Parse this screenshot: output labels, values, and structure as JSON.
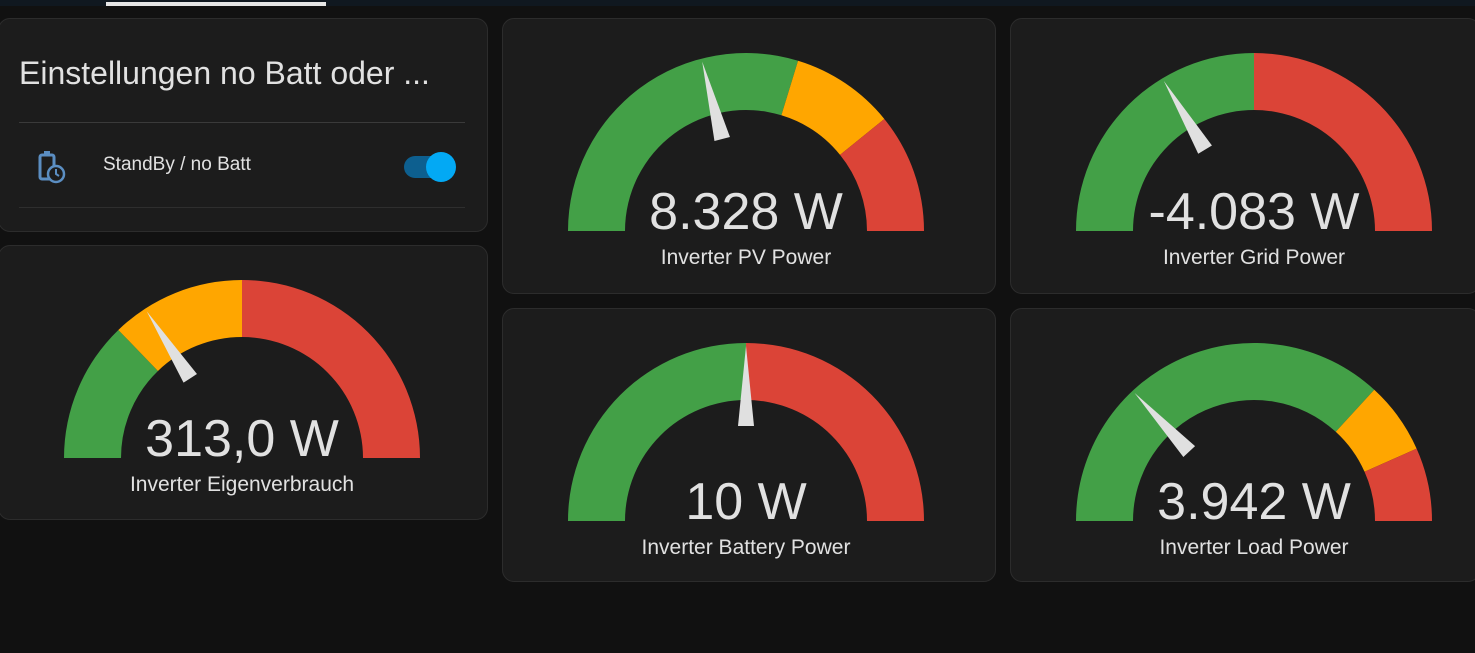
{
  "settings_card": {
    "title": "Einstellungen no Batt oder ...",
    "entities": [
      {
        "name": "StandBy / no Batt"
      }
    ]
  },
  "gauges": [
    {
      "value": "313,0 W",
      "name": "Inverter Eigenverbrauch"
    },
    {
      "value": "8.328 W",
      "name": "Inverter PV Power"
    },
    {
      "value": "-4.083 W",
      "name": "Inverter Grid Power"
    },
    {
      "value": "10 W",
      "name": "Inverter Battery Power"
    },
    {
      "value": "3.942 W",
      "name": "Inverter Load Power"
    }
  ]
}
